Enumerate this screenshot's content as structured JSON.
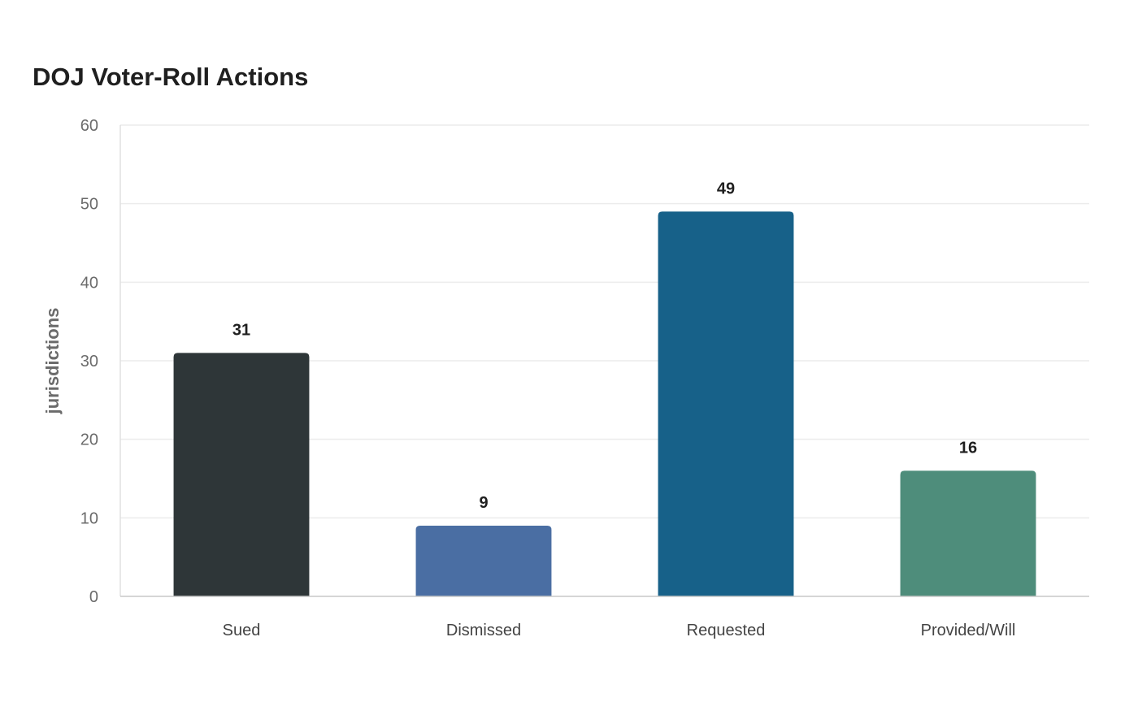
{
  "chart_data": {
    "type": "bar",
    "title": "DOJ Voter-Roll Actions",
    "xlabel": "",
    "ylabel": "jurisdictions",
    "categories": [
      "Sued",
      "Dismissed",
      "Requested",
      "Provided/Will"
    ],
    "values": [
      31,
      9,
      49,
      16
    ],
    "value_labels": [
      "31",
      "9",
      "49",
      "16"
    ],
    "colors": [
      "#2e3638",
      "#4a6ea3",
      "#176189",
      "#4e8d7b"
    ],
    "ylim": [
      0,
      60
    ],
    "yticks": [
      0,
      10,
      20,
      30,
      40,
      50,
      60
    ],
    "grid": true,
    "legend": "none"
  }
}
